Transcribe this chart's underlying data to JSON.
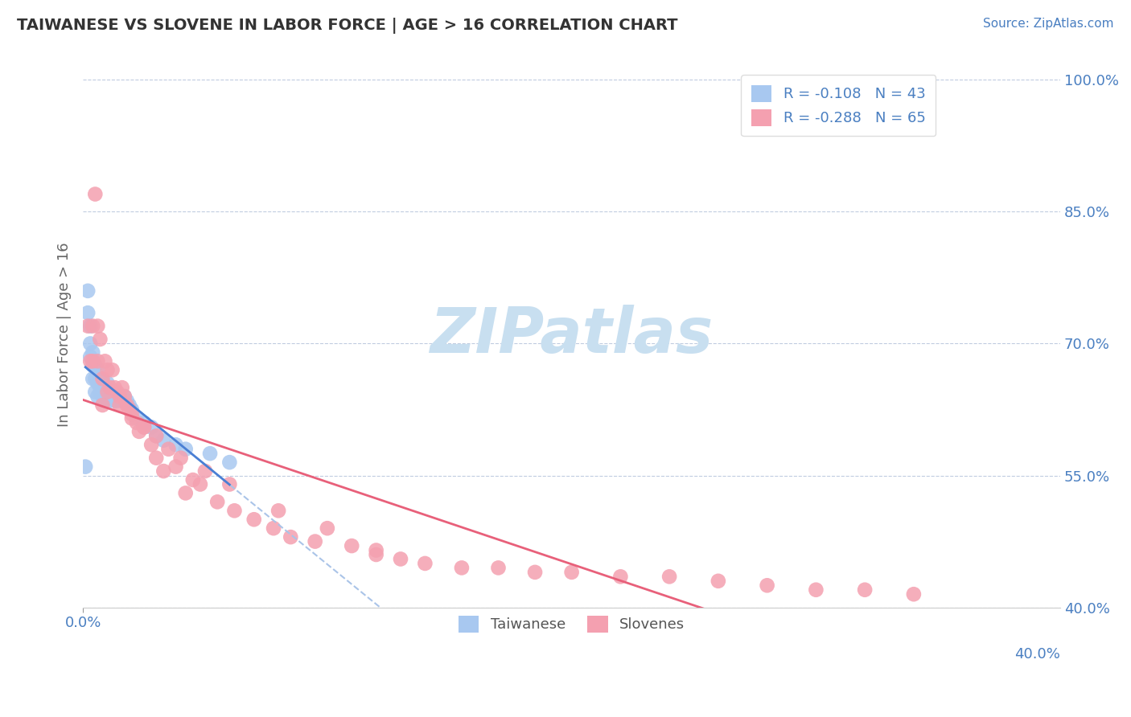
{
  "title": "TAIWANESE VS SLOVENE IN LABOR FORCE | AGE > 16 CORRELATION CHART",
  "source_text": "Source: ZipAtlas.com",
  "ylabel": "In Labor Force | Age > 16",
  "xlim": [
    0.0,
    0.4
  ],
  "ylim": [
    0.4,
    1.02
  ],
  "yticks": [
    0.4,
    0.55,
    0.7,
    0.85,
    1.0
  ],
  "ytick_labels": [
    "40.0%",
    "55.0%",
    "70.0%",
    "85.0%",
    "100.0%"
  ],
  "xtick_left_label": "0.0%",
  "xtick_right_label": "40.0%",
  "taiwanese_R": -0.108,
  "taiwanese_N": 43,
  "slovene_R": -0.288,
  "slovene_N": 65,
  "taiwanese_color": "#a8c8f0",
  "slovene_color": "#f4a0b0",
  "taiwanese_line_color": "#4a7fd4",
  "slovene_line_color": "#e8607a",
  "taiwanese_dash_color": "#aac4e8",
  "legend_text_color": "#4a7fc1",
  "watermark": "ZIPatlas",
  "watermark_color": "#c8dff0",
  "taiwanese_x": [
    0.001,
    0.002,
    0.002,
    0.003,
    0.003,
    0.003,
    0.004,
    0.004,
    0.004,
    0.005,
    0.005,
    0.005,
    0.006,
    0.006,
    0.006,
    0.007,
    0.007,
    0.008,
    0.008,
    0.009,
    0.009,
    0.01,
    0.01,
    0.011,
    0.012,
    0.013,
    0.013,
    0.014,
    0.015,
    0.016,
    0.017,
    0.018,
    0.019,
    0.02,
    0.022,
    0.025,
    0.028,
    0.03,
    0.033,
    0.038,
    0.042,
    0.052,
    0.06
  ],
  "taiwanese_y": [
    0.56,
    0.735,
    0.76,
    0.685,
    0.7,
    0.72,
    0.66,
    0.675,
    0.69,
    0.645,
    0.66,
    0.675,
    0.64,
    0.655,
    0.67,
    0.645,
    0.66,
    0.64,
    0.655,
    0.635,
    0.65,
    0.64,
    0.655,
    0.635,
    0.645,
    0.635,
    0.645,
    0.635,
    0.64,
    0.635,
    0.64,
    0.635,
    0.63,
    0.625,
    0.615,
    0.61,
    0.605,
    0.595,
    0.59,
    0.585,
    0.58,
    0.575,
    0.565
  ],
  "slovene_x": [
    0.002,
    0.003,
    0.004,
    0.004,
    0.005,
    0.006,
    0.006,
    0.007,
    0.008,
    0.008,
    0.009,
    0.01,
    0.011,
    0.012,
    0.013,
    0.014,
    0.015,
    0.016,
    0.017,
    0.018,
    0.019,
    0.02,
    0.022,
    0.023,
    0.025,
    0.028,
    0.03,
    0.033,
    0.038,
    0.042,
    0.048,
    0.055,
    0.062,
    0.07,
    0.078,
    0.085,
    0.095,
    0.11,
    0.12,
    0.13,
    0.14,
    0.155,
    0.17,
    0.185,
    0.2,
    0.22,
    0.24,
    0.26,
    0.28,
    0.3,
    0.32,
    0.34,
    0.01,
    0.015,
    0.02,
    0.025,
    0.03,
    0.04,
    0.05,
    0.06,
    0.08,
    0.1,
    0.12,
    0.035,
    0.045
  ],
  "slovene_y": [
    0.72,
    0.68,
    0.72,
    0.68,
    0.87,
    0.72,
    0.68,
    0.705,
    0.66,
    0.63,
    0.68,
    0.67,
    0.65,
    0.67,
    0.65,
    0.645,
    0.64,
    0.65,
    0.64,
    0.63,
    0.625,
    0.615,
    0.61,
    0.6,
    0.605,
    0.585,
    0.57,
    0.555,
    0.56,
    0.53,
    0.54,
    0.52,
    0.51,
    0.5,
    0.49,
    0.48,
    0.475,
    0.47,
    0.46,
    0.455,
    0.45,
    0.445,
    0.445,
    0.44,
    0.44,
    0.435,
    0.435,
    0.43,
    0.425,
    0.42,
    0.42,
    0.415,
    0.645,
    0.63,
    0.62,
    0.605,
    0.595,
    0.57,
    0.555,
    0.54,
    0.51,
    0.49,
    0.465,
    0.58,
    0.545
  ],
  "bottom_legend_labels": [
    "Taiwanese",
    "Slovenes"
  ]
}
